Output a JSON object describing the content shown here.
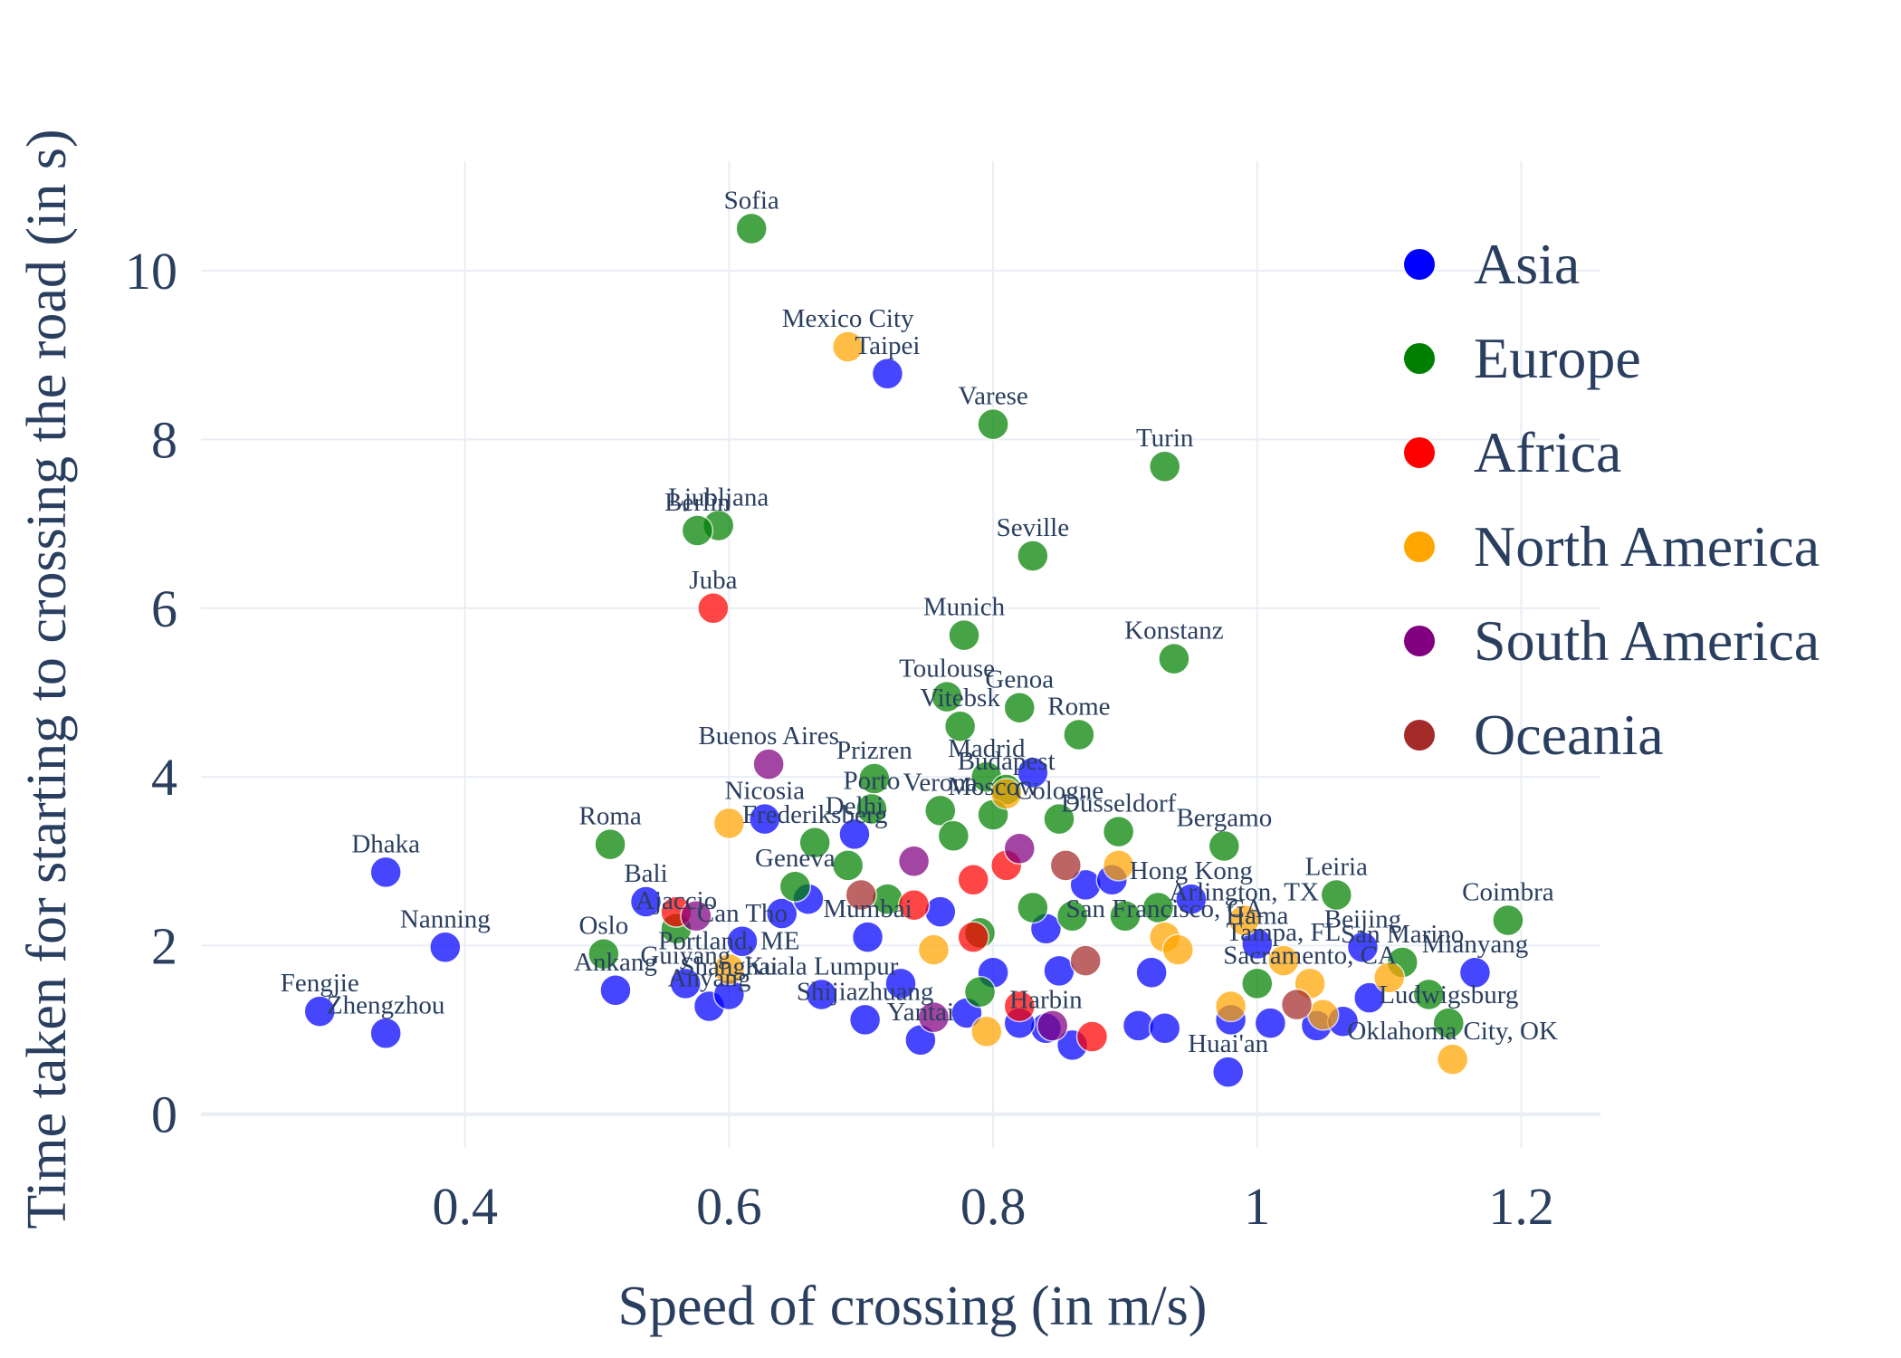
{
  "chart_data": {
    "type": "scatter",
    "title": "",
    "xlabel": "Speed of crossing (in m/s)",
    "ylabel": "Time taken for starting to crossing the road (in s)",
    "xlim": [
      0.2,
      1.26
    ],
    "ylim": [
      -0.4,
      11.3
    ],
    "xticks": [
      0.4,
      0.6,
      0.8,
      1,
      1.2
    ],
    "xtick_labels": [
      "0.4",
      "0.6",
      "0.8",
      "1",
      "1.2"
    ],
    "yticks": [
      0,
      2,
      4,
      6,
      8,
      10
    ],
    "ytick_labels": [
      "0",
      "2",
      "4",
      "6",
      "8",
      "10"
    ],
    "grid": true,
    "legend_position": "right",
    "colors": {
      "Asia": "#0000ff",
      "Europe": "#008000",
      "Africa": "#ff0000",
      "North America": "#ffa500",
      "South America": "#800080",
      "Oceania": "#a52a2a"
    },
    "legend": [
      "Asia",
      "Europe",
      "Africa",
      "North America",
      "South America",
      "Oceania"
    ],
    "series": [
      {
        "name": "Asia",
        "points": [
          {
            "label": "Taipei",
            "x": 0.72,
            "y": 8.78
          },
          {
            "label": "Dhaka",
            "x": 0.34,
            "y": 2.87
          },
          {
            "label": "Nanning",
            "x": 0.385,
            "y": 1.98
          },
          {
            "label": "Fengjie",
            "x": 0.29,
            "y": 1.22
          },
          {
            "label": "Zhengzhou",
            "x": 0.34,
            "y": 0.96
          },
          {
            "label": "Bali",
            "x": 0.537,
            "y": 2.52
          },
          {
            "label": "Nicosia",
            "x": 0.627,
            "y": 3.5
          },
          {
            "label": "Ankang",
            "x": 0.514,
            "y": 1.47
          },
          {
            "label": "Guiyang",
            "x": 0.567,
            "y": 1.55
          },
          {
            "label": "Anyang",
            "x": 0.585,
            "y": 1.28
          },
          {
            "label": "Shanghai",
            "x": 0.6,
            "y": 1.42
          },
          {
            "label": "Can Tho",
            "x": 0.61,
            "y": 2.05
          },
          {
            "label": "Kuala Lumpur",
            "x": 0.67,
            "y": 1.42
          },
          {
            "label": "Delhi",
            "x": 0.695,
            "y": 3.32
          },
          {
            "label": "Mumbai",
            "x": 0.705,
            "y": 2.1
          },
          {
            "label": "Shijiazhuang",
            "x": 0.703,
            "y": 1.12
          },
          {
            "label": "Yantai",
            "x": 0.745,
            "y": 0.88
          },
          {
            "label": "Hong Kong",
            "x": 0.95,
            "y": 2.55
          },
          {
            "label": "Hama",
            "x": 1.0,
            "y": 2.02
          },
          {
            "label": "Beijing",
            "x": 1.08,
            "y": 1.98
          },
          {
            "label": "Mianyang",
            "x": 1.165,
            "y": 1.68
          },
          {
            "label": "Huai'an",
            "x": 0.978,
            "y": 0.5
          },
          {
            "label": "Harbin",
            "x": 0.84,
            "y": 1.02
          },
          {
            "label": "",
            "x": 0.83,
            "y": 4.05
          },
          {
            "label": "",
            "x": 0.64,
            "y": 2.38
          },
          {
            "label": "",
            "x": 0.66,
            "y": 2.55
          },
          {
            "label": "",
            "x": 0.76,
            "y": 2.4
          },
          {
            "label": "",
            "x": 0.78,
            "y": 1.2
          },
          {
            "label": "",
            "x": 0.8,
            "y": 1.68
          },
          {
            "label": "",
            "x": 0.82,
            "y": 1.08
          },
          {
            "label": "",
            "x": 0.85,
            "y": 1.7
          },
          {
            "label": "",
            "x": 0.86,
            "y": 0.82
          },
          {
            "label": "",
            "x": 0.87,
            "y": 2.72
          },
          {
            "label": "",
            "x": 0.91,
            "y": 1.05
          },
          {
            "label": "",
            "x": 0.92,
            "y": 1.68
          },
          {
            "label": "",
            "x": 0.93,
            "y": 1.02
          },
          {
            "label": "",
            "x": 0.98,
            "y": 1.12
          },
          {
            "label": "",
            "x": 1.01,
            "y": 1.08
          },
          {
            "label": "",
            "x": 1.045,
            "y": 1.05
          },
          {
            "label": "",
            "x": 1.065,
            "y": 1.1
          },
          {
            "label": "",
            "x": 1.085,
            "y": 1.38
          },
          {
            "label": "",
            "x": 0.73,
            "y": 1.55
          },
          {
            "label": "",
            "x": 0.84,
            "y": 2.2
          },
          {
            "label": "",
            "x": 0.89,
            "y": 2.78
          }
        ]
      },
      {
        "name": "Europe",
        "points": [
          {
            "label": "Sofia",
            "x": 0.617,
            "y": 10.5
          },
          {
            "label": "Varese",
            "x": 0.8,
            "y": 8.18
          },
          {
            "label": "Turin",
            "x": 0.93,
            "y": 7.68
          },
          {
            "label": "Ljubljana",
            "x": 0.592,
            "y": 6.98
          },
          {
            "label": "Berlin",
            "x": 0.576,
            "y": 6.92
          },
          {
            "label": "Seville",
            "x": 0.83,
            "y": 6.62
          },
          {
            "label": "Munich",
            "x": 0.778,
            "y": 5.68
          },
          {
            "label": "Konstanz",
            "x": 0.937,
            "y": 5.4
          },
          {
            "label": "Toulouse",
            "x": 0.765,
            "y": 4.95
          },
          {
            "label": "Genoa",
            "x": 0.82,
            "y": 4.82
          },
          {
            "label": "Vitebsk",
            "x": 0.775,
            "y": 4.6
          },
          {
            "label": "Rome",
            "x": 0.865,
            "y": 4.5
          },
          {
            "label": "Prizren",
            "x": 0.71,
            "y": 3.98
          },
          {
            "label": "Madrid",
            "x": 0.795,
            "y": 4.0
          },
          {
            "label": "Budapest",
            "x": 0.81,
            "y": 3.85
          },
          {
            "label": "Porto",
            "x": 0.708,
            "y": 3.62
          },
          {
            "label": "Verona",
            "x": 0.76,
            "y": 3.6
          },
          {
            "label": "Moscow",
            "x": 0.8,
            "y": 3.55
          },
          {
            "label": "Cologne",
            "x": 0.85,
            "y": 3.5
          },
          {
            "label": "Düsseldorf",
            "x": 0.895,
            "y": 3.35
          },
          {
            "label": "Roma",
            "x": 0.51,
            "y": 3.2
          },
          {
            "label": "Bergamo",
            "x": 0.975,
            "y": 3.18
          },
          {
            "label": "Leiria",
            "x": 1.06,
            "y": 2.6
          },
          {
            "label": "Coimbra",
            "x": 1.19,
            "y": 2.3
          },
          {
            "label": "San Marino",
            "x": 1.11,
            "y": 1.8
          },
          {
            "label": "Ludwigsburg",
            "x": 1.145,
            "y": 1.08
          },
          {
            "label": "Frederiksberg",
            "x": 0.665,
            "y": 3.22
          },
          {
            "label": "Geneva",
            "x": 0.65,
            "y": 2.7
          },
          {
            "label": "Oslo",
            "x": 0.505,
            "y": 1.9
          },
          {
            "label": "Ajaccio",
            "x": 0.56,
            "y": 2.2
          },
          {
            "label": "",
            "x": 0.72,
            "y": 2.55
          },
          {
            "label": "",
            "x": 0.77,
            "y": 3.3
          },
          {
            "label": "",
            "x": 0.79,
            "y": 2.15
          },
          {
            "label": "",
            "x": 0.83,
            "y": 2.45
          },
          {
            "label": "",
            "x": 0.9,
            "y": 2.35
          },
          {
            "label": "",
            "x": 0.925,
            "y": 2.45
          },
          {
            "label": "",
            "x": 1.0,
            "y": 1.55
          },
          {
            "label": "",
            "x": 1.13,
            "y": 1.42
          },
          {
            "label": "",
            "x": 0.79,
            "y": 1.45
          },
          {
            "label": "",
            "x": 0.86,
            "y": 2.35
          },
          {
            "label": "",
            "x": 0.69,
            "y": 2.95
          }
        ]
      },
      {
        "name": "Africa",
        "points": [
          {
            "label": "Juba",
            "x": 0.588,
            "y": 6.0
          },
          {
            "label": "",
            "x": 0.56,
            "y": 2.4
          },
          {
            "label": "",
            "x": 0.74,
            "y": 2.48
          },
          {
            "label": "",
            "x": 0.785,
            "y": 2.78
          },
          {
            "label": "",
            "x": 0.81,
            "y": 2.95
          },
          {
            "label": "",
            "x": 0.785,
            "y": 2.1
          },
          {
            "label": "",
            "x": 0.82,
            "y": 1.28
          },
          {
            "label": "",
            "x": 0.875,
            "y": 0.92
          }
        ]
      },
      {
        "name": "North America",
        "points": [
          {
            "label": "Mexico City",
            "x": 0.69,
            "y": 9.1
          },
          {
            "label": "Arlington, TX",
            "x": 0.99,
            "y": 2.3
          },
          {
            "label": "San Francisco, CA",
            "x": 0.93,
            "y": 2.1
          },
          {
            "label": "Portland, ME",
            "x": 0.6,
            "y": 1.72
          },
          {
            "label": "Sacramento, CA",
            "x": 1.04,
            "y": 1.55
          },
          {
            "label": "Tampa, FL",
            "x": 1.02,
            "y": 1.82
          },
          {
            "label": "Oklahoma City, OK",
            "x": 1.148,
            "y": 0.65
          },
          {
            "label": "",
            "x": 0.6,
            "y": 3.45
          },
          {
            "label": "",
            "x": 0.81,
            "y": 3.8
          },
          {
            "label": "",
            "x": 0.895,
            "y": 2.95
          },
          {
            "label": "",
            "x": 0.755,
            "y": 1.95
          },
          {
            "label": "",
            "x": 0.795,
            "y": 0.98
          },
          {
            "label": "",
            "x": 0.98,
            "y": 1.28
          },
          {
            "label": "",
            "x": 1.05,
            "y": 1.18
          },
          {
            "label": "",
            "x": 1.1,
            "y": 1.62
          },
          {
            "label": "",
            "x": 0.94,
            "y": 1.95
          }
        ]
      },
      {
        "name": "South America",
        "points": [
          {
            "label": "Buenos Aires",
            "x": 0.63,
            "y": 4.15
          },
          {
            "label": "",
            "x": 0.74,
            "y": 3.0
          },
          {
            "label": "",
            "x": 0.82,
            "y": 3.15
          },
          {
            "label": "",
            "x": 0.755,
            "y": 1.15
          },
          {
            "label": "",
            "x": 0.845,
            "y": 1.05
          },
          {
            "label": "",
            "x": 0.575,
            "y": 2.35
          }
        ]
      },
      {
        "name": "Oceania",
        "points": [
          {
            "label": "",
            "x": 0.7,
            "y": 2.6
          },
          {
            "label": "",
            "x": 0.855,
            "y": 2.95
          },
          {
            "label": "",
            "x": 0.87,
            "y": 1.82
          },
          {
            "label": "",
            "x": 1.03,
            "y": 1.3
          }
        ]
      }
    ]
  }
}
